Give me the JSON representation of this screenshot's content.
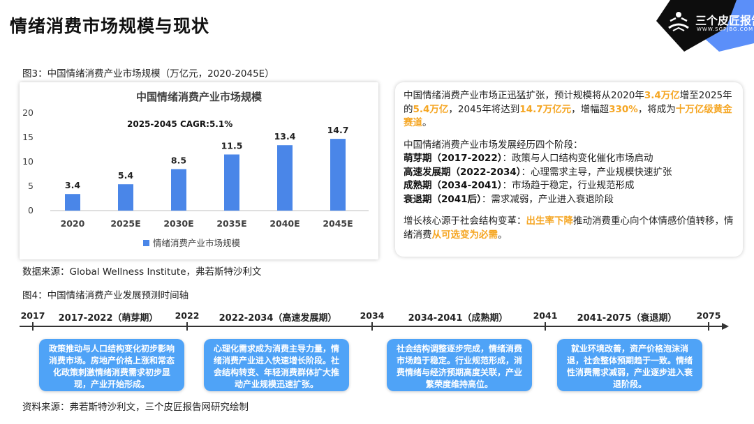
{
  "page": {
    "title": "情绪消费市场规模与现状"
  },
  "logo": {
    "name": "三个皮匠报告",
    "url": "WWW.SGPJBG.COM",
    "icon": "reading-person-icon"
  },
  "figure3": {
    "caption": "图3：中国情绪消费产业市场规模（万亿元，2020-2045E）",
    "source": "数据来源：Global Wellness Institute，弗若斯特沙利文"
  },
  "chart_data": {
    "type": "bar",
    "title": "中国情绪消费产业市场规模",
    "annotation": "2025-2045 CAGR:5.1%",
    "categories": [
      "2020",
      "2025E",
      "2030E",
      "2035E",
      "2040E",
      "2045E"
    ],
    "series": [
      {
        "name": "情绪消费产业市场规模",
        "values": [
          3.4,
          5.4,
          8.5,
          11.5,
          13.4,
          14.7
        ],
        "color": "#4a86e8"
      }
    ],
    "data_labels": [
      "3.4",
      "5.4",
      "8.5",
      "11.5",
      "13.4",
      "14.7"
    ],
    "ylim": [
      0,
      20
    ],
    "yticks": [
      "0",
      "5",
      "10",
      "15",
      "20"
    ],
    "grid": false,
    "legend_position": "bottom"
  },
  "info": {
    "p1": {
      "t1": "中国情绪消费产业市场正迅猛扩张，预计规模将从2020年",
      "h1": "3.4万亿",
      "t2": "增至2025年的",
      "h2": "5.4万亿",
      "t3": "，2045年将达到",
      "h3": "14.7万亿元",
      "t4": "，增幅超",
      "h4": "330%",
      "t5": "，将成为",
      "h5": "十万亿级黄金赛道",
      "t6": "。"
    },
    "stages_intro": "中国情绪消费产业市场发展经历四个阶段：",
    "stages": [
      {
        "name": "萌芽期（2017-2022）",
        "desc": "：政策与人口结构变化催化市场启动"
      },
      {
        "name": "高速发展期（2022-2034）",
        "desc": "：心理需求主导，产业规模快速扩张"
      },
      {
        "name": "成熟期（2034-2041）",
        "desc": "：市场趋于稳定，行业规范形成"
      },
      {
        "name": "衰退期（2041后）",
        "desc": "：需求减弱，产业进入衰退阶段"
      }
    ],
    "p3": {
      "t1": "增长核心源于社会结构变革：",
      "h1": "出生率下降",
      "t2": "推动消费重心向个体情感价值转移，情绪消费",
      "h2": "从可选变为必需",
      "t3": "。"
    }
  },
  "figure4": {
    "caption": "图4：中国情绪消费产业发展预测时间轴",
    "source": "资料来源：弗若斯特沙利文，三个皮匠报告网研究绘制",
    "years": [
      "2017",
      "2022",
      "2034",
      "2041",
      "2075"
    ],
    "stages": [
      "2017-2022（萌芽期）",
      "2022-2034（高速发展期）",
      "2034-2041（成熟期）",
      "2041-2075（衰退期）"
    ],
    "boxes": [
      "政策推动与人口结构变化初步影响消费市场。房地产价格上涨和常态化政策刺激情绪消费需求初步显现，产业开始形成。",
      "心理化需求成为消费主导力量，情绪消费产业进入快速增长阶段。社会结构转变、年轻消费群体扩大推动产业规模迅速扩张。",
      "社会结构调整逐步完成，情绪消费市场趋于稳定。行业规范形成，消费情绪与经济预期高度关联，产业繁荣度维持高位。",
      "就业环境改善，资产价格泡沫消退，社会整体预期趋于一致。情绪性消费需求减弱，产业逐步进入衰退阶段。"
    ]
  }
}
